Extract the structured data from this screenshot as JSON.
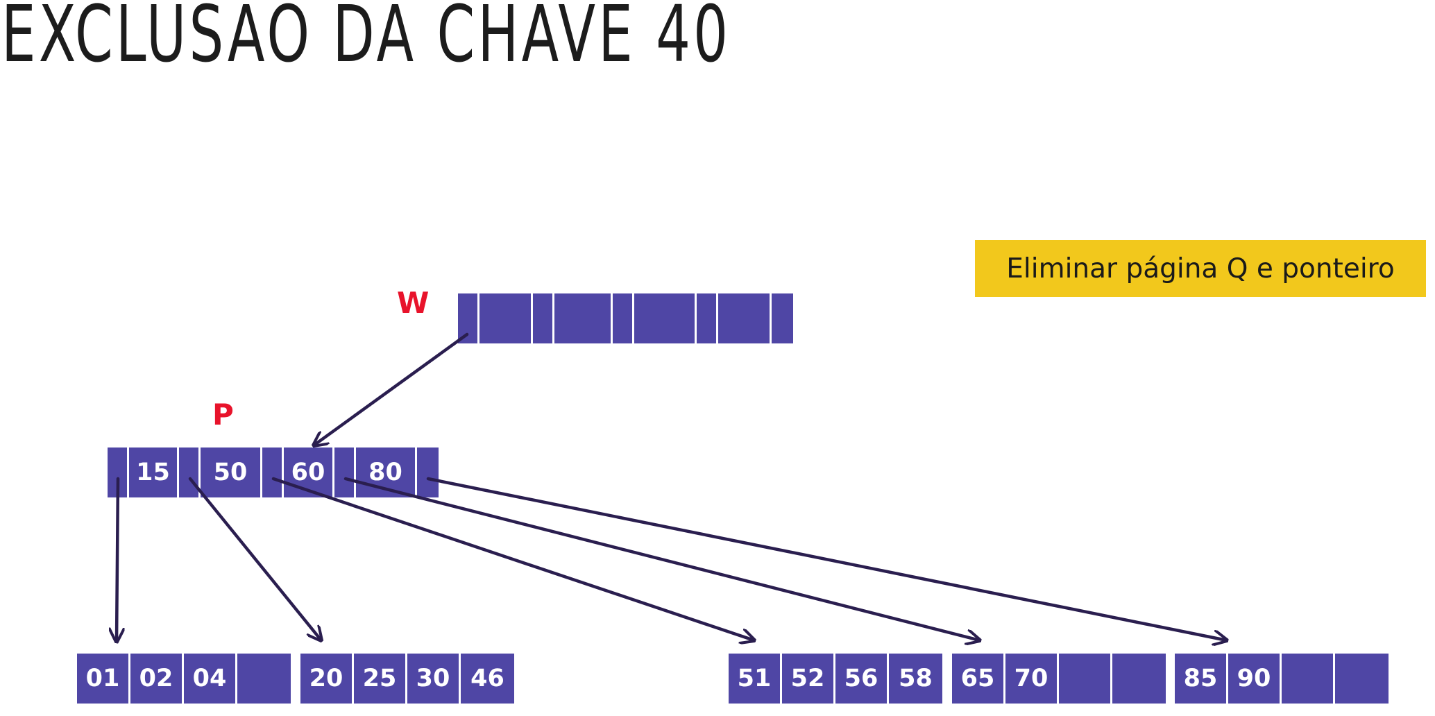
{
  "title": "EXCLUSÃO DA CHAVE 40",
  "note": "Eliminar página Q e ponteiro",
  "labels": {
    "w": "W",
    "p": "P"
  },
  "nodes": {
    "w": {
      "keys": [
        "",
        "",
        "",
        ""
      ]
    },
    "p": {
      "keys": [
        "15",
        "50",
        "60",
        "80"
      ]
    },
    "leaf1": {
      "keys": [
        "01",
        "02",
        "04",
        ""
      ]
    },
    "leaf2": {
      "keys": [
        "20",
        "25",
        "30",
        "46"
      ]
    },
    "leaf3": {
      "keys": [
        "51",
        "52",
        "56",
        "58"
      ]
    },
    "leaf4": {
      "keys": [
        "65",
        "70",
        "",
        ""
      ]
    },
    "leaf5": {
      "keys": [
        "85",
        "90",
        "",
        ""
      ]
    }
  },
  "colors": {
    "node": "#4f46a5",
    "arrow": "#2a1e4f",
    "label": "#e8132b",
    "note_bg": "#f2c81c"
  }
}
